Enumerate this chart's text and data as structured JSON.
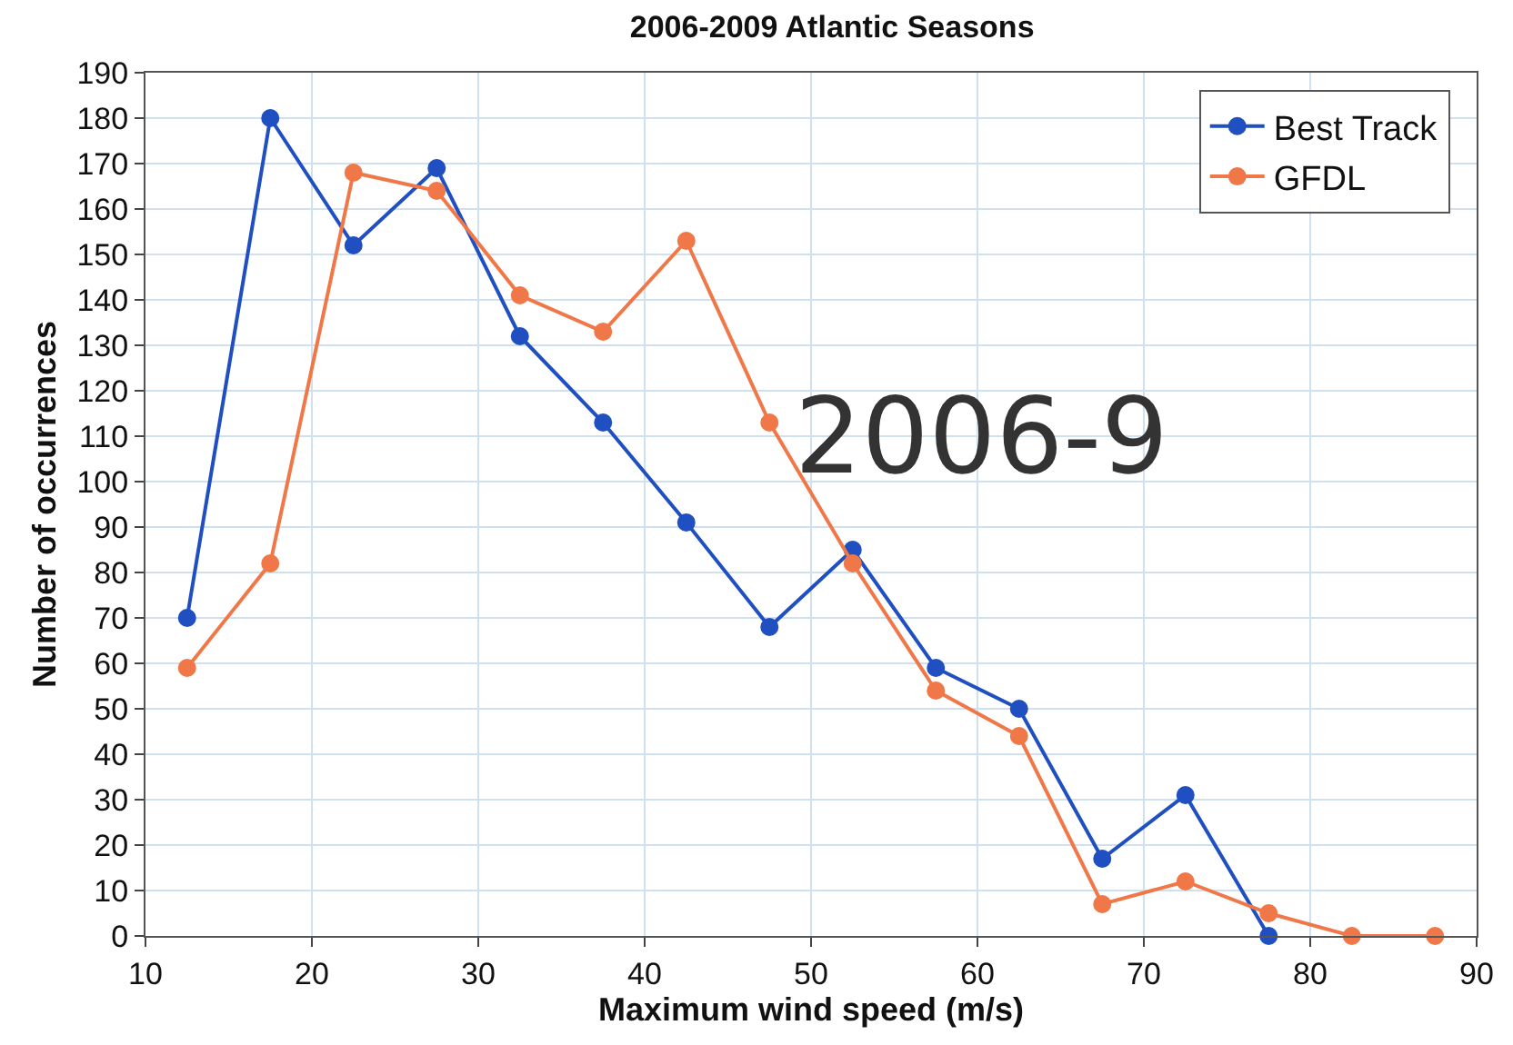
{
  "chart_data": {
    "type": "line",
    "title": "2006-2009 Atlantic Seasons",
    "xlabel": "Maximum wind speed (m/s)",
    "ylabel": "Number of occurrences",
    "annotations": [
      "2006-9"
    ],
    "series": [
      {
        "name": "Best Track",
        "color": "#1f4fc0",
        "x": [
          12.5,
          17.5,
          22.5,
          27.5,
          32.5,
          37.5,
          42.5,
          47.5,
          52.5,
          57.5,
          62.5,
          67.5,
          72.5,
          77.5
        ],
        "values": [
          70,
          180,
          152,
          169,
          132,
          113,
          91,
          68,
          85,
          59,
          50,
          17,
          31,
          0
        ]
      },
      {
        "name": "GFDL",
        "color": "#f07848",
        "x": [
          12.5,
          17.5,
          22.5,
          27.5,
          32.5,
          37.5,
          42.5,
          47.5,
          52.5,
          57.5,
          62.5,
          67.5,
          72.5,
          77.5,
          82.5,
          87.5
        ],
        "values": [
          59,
          82,
          168,
          164,
          141,
          133,
          153,
          113,
          82,
          54,
          44,
          7,
          12,
          5,
          0,
          0
        ]
      }
    ],
    "xlim": [
      10,
      90
    ],
    "xticks": [
      10,
      20,
      30,
      40,
      50,
      60,
      70,
      80,
      90
    ],
    "ylim": [
      0,
      190
    ],
    "yticks": [
      0,
      10,
      20,
      30,
      40,
      50,
      60,
      70,
      80,
      90,
      100,
      110,
      120,
      130,
      140,
      150,
      160,
      170,
      180,
      190
    ],
    "grid": true,
    "legend": "top right",
    "marker": "circle",
    "line_style": "solid"
  }
}
